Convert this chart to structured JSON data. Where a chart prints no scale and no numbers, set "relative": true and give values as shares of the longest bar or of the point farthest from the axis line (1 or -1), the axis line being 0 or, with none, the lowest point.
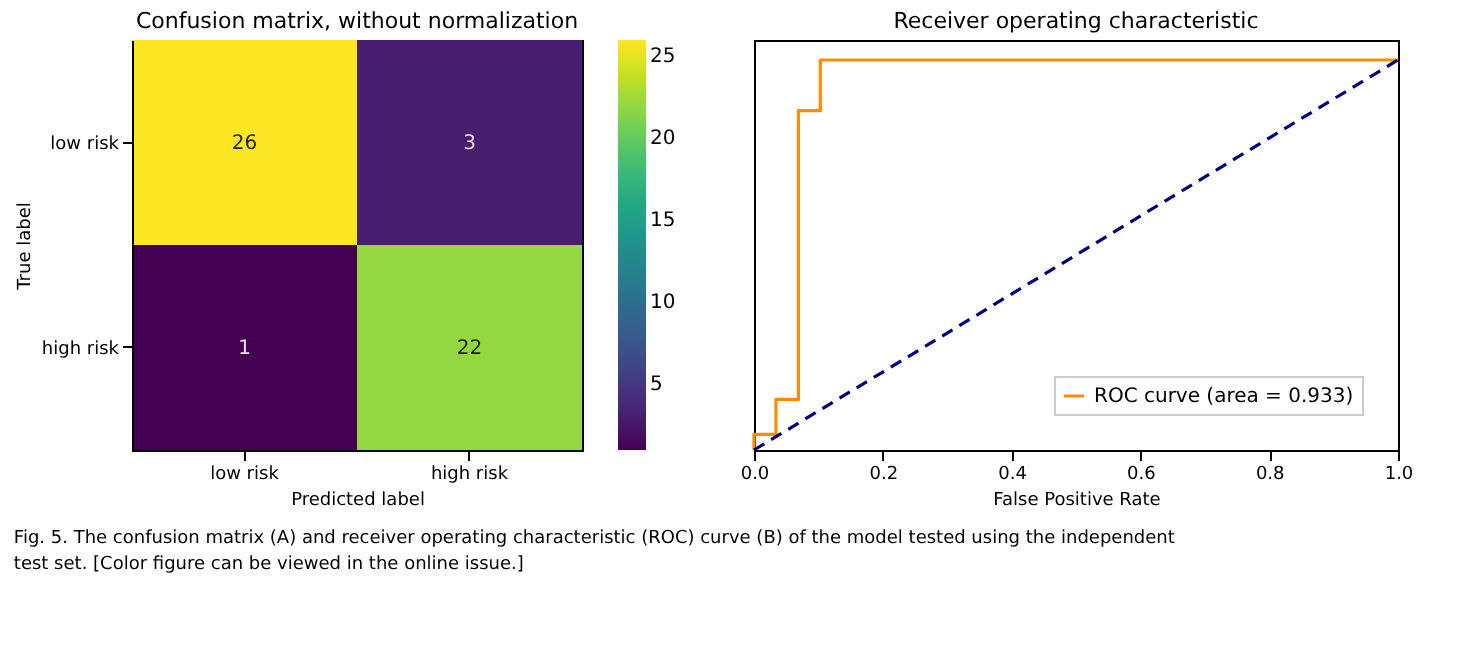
{
  "chart_data": [
    {
      "type": "heatmap",
      "title": "Confusion matrix, without normalization",
      "xlabel": "Predicted label",
      "ylabel": "True label",
      "categories": [
        "low risk",
        "high risk"
      ],
      "y_categories": [
        "low risk",
        "high risk"
      ],
      "cells": [
        [
          26,
          3
        ],
        [
          1,
          22
        ]
      ],
      "clim": [
        1,
        26
      ],
      "cticks": [
        5,
        10,
        15,
        20,
        25
      ],
      "data_labels": true,
      "annotations": [
        "Fig. 5. The confusion matrix (A) and receiver operating characteristic (ROC) curve (B) of the model tested using the independent test set. [Color figure can be viewed in the online issue.]"
      ]
    },
    {
      "type": "line",
      "title": "Receiver operating characteristic",
      "xlabel": "False Positive Rate",
      "xlim": [
        0,
        1
      ],
      "xticks": [
        {
          "value": 0,
          "label": "0.0"
        },
        0.2,
        0.4,
        0.6,
        0.8,
        {
          "value": 1,
          "label": "1.0"
        }
      ],
      "relative": true,
      "grid": false,
      "legend": "bottom right",
      "series": [
        {
          "name": "ROC curve (area = 0.933)",
          "color": "#ff8c00",
          "line_style": "solid",
          "x": [
            0,
            0,
            0.034,
            0.034,
            0.069,
            0.069,
            0.103,
            0.103,
            1
          ],
          "values": [
            0,
            0.04,
            0.04,
            0.13,
            0.13,
            0.87,
            0.87,
            1,
            1
          ]
        },
        {
          "color": "#000080",
          "line_style": "dashed",
          "x": [
            0,
            1
          ],
          "values": [
            0,
            1
          ]
        }
      ]
    }
  ]
}
